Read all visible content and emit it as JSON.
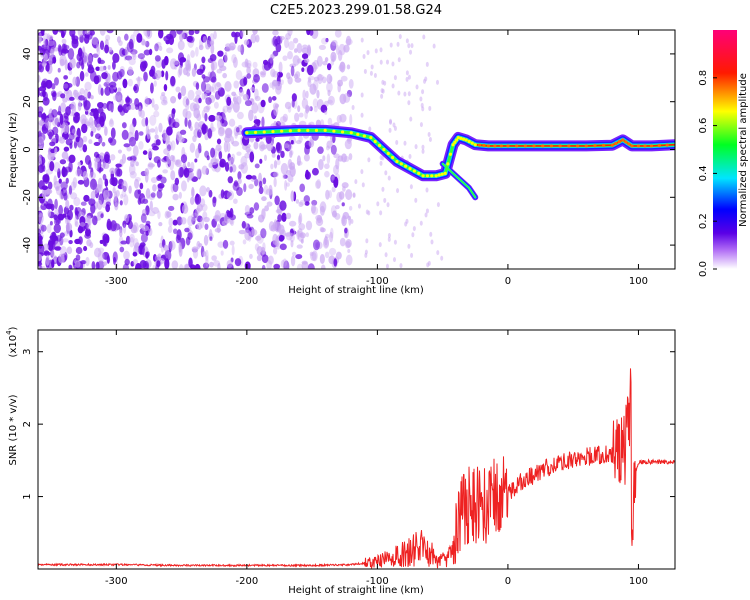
{
  "title": "C2E5.2023.299.01.58.G24",
  "colors": {
    "snr_line": "#ee2222",
    "blob_purple": "#6a0de0",
    "blob_light": "#c9a6f2"
  },
  "chart_data": [
    {
      "type": "heatmap",
      "title": "C2E5.2023.299.01.58.G24",
      "xlabel": "Height of straight line (km)",
      "ylabel": "Frequency (Hz)",
      "xlim": [
        -360,
        128
      ],
      "ylim": [
        -50,
        50
      ],
      "xticks": [
        -300,
        -200,
        -100,
        0,
        100
      ],
      "yticks": [
        -40,
        -20,
        0,
        20,
        40
      ],
      "colorbar": {
        "label": "Normalized spectral amplitude",
        "range": [
          0,
          1
        ],
        "ticks": [
          "0.0",
          "0.2",
          "0.4",
          "0.6",
          "0.8"
        ],
        "colormap": "rainbow (white-purple-blue-cyan-green-yellow-red-magenta)"
      },
      "noise_region_x": [
        -360,
        -120
      ],
      "signal_trace": {
        "x": [
          -200,
          -180,
          -160,
          -140,
          -120,
          -105,
          -95,
          -85,
          -75,
          -65,
          -55,
          -48,
          -42,
          -38,
          -32,
          -25,
          -15,
          0,
          20,
          40,
          60,
          80,
          88,
          95,
          110,
          128
        ],
        "y": [
          7,
          7.5,
          8,
          8,
          7,
          5,
          0,
          -5,
          -8,
          -11,
          -11,
          -10,
          2,
          5,
          4,
          2,
          1.5,
          1.5,
          1.5,
          1.5,
          1.5,
          1.8,
          4,
          1.5,
          1.5,
          2
        ]
      },
      "secondary_trace": {
        "x": [
          -50,
          -38,
          -30,
          -25
        ],
        "y": [
          -6,
          -12,
          -16,
          -20
        ]
      }
    },
    {
      "type": "line",
      "xlabel": "Height of straight line (km)",
      "ylabel": "SNR (10 * v/v)",
      "y_multiplier": "(x10^4)",
      "y_multiplier_base": "(x10",
      "y_multiplier_exp": "4",
      "y_multiplier_close": ")",
      "xlim": [
        -360,
        128
      ],
      "ylim": [
        0,
        3.3
      ],
      "xticks": [
        -300,
        -200,
        -100,
        0,
        100
      ],
      "yticks": [
        1,
        2,
        3
      ],
      "series": [
        {
          "x": [
            -360,
            -300,
            -250,
            -200,
            -150,
            -120,
            -100,
            -90,
            -80,
            -70,
            -65,
            -60,
            -55,
            -50,
            -45,
            -40,
            -35,
            -30,
            -25,
            -20,
            -15,
            -10,
            -5,
            0,
            10,
            20,
            30,
            40,
            50,
            60,
            70,
            80,
            85,
            90,
            93,
            95,
            100,
            110,
            128
          ],
          "y": [
            0.06,
            0.06,
            0.05,
            0.05,
            0.05,
            0.06,
            0.1,
            0.15,
            0.2,
            0.28,
            0.3,
            0.25,
            0.1,
            0.15,
            0.3,
            0.55,
            0.75,
            0.9,
            0.85,
            0.95,
            0.85,
            1.0,
            1.0,
            1.05,
            1.2,
            1.3,
            1.4,
            1.48,
            1.52,
            1.55,
            1.57,
            1.58,
            1.6,
            1.65,
            2.5,
            1.2,
            1.48,
            1.48,
            1.48
          ]
        }
      ]
    }
  ]
}
